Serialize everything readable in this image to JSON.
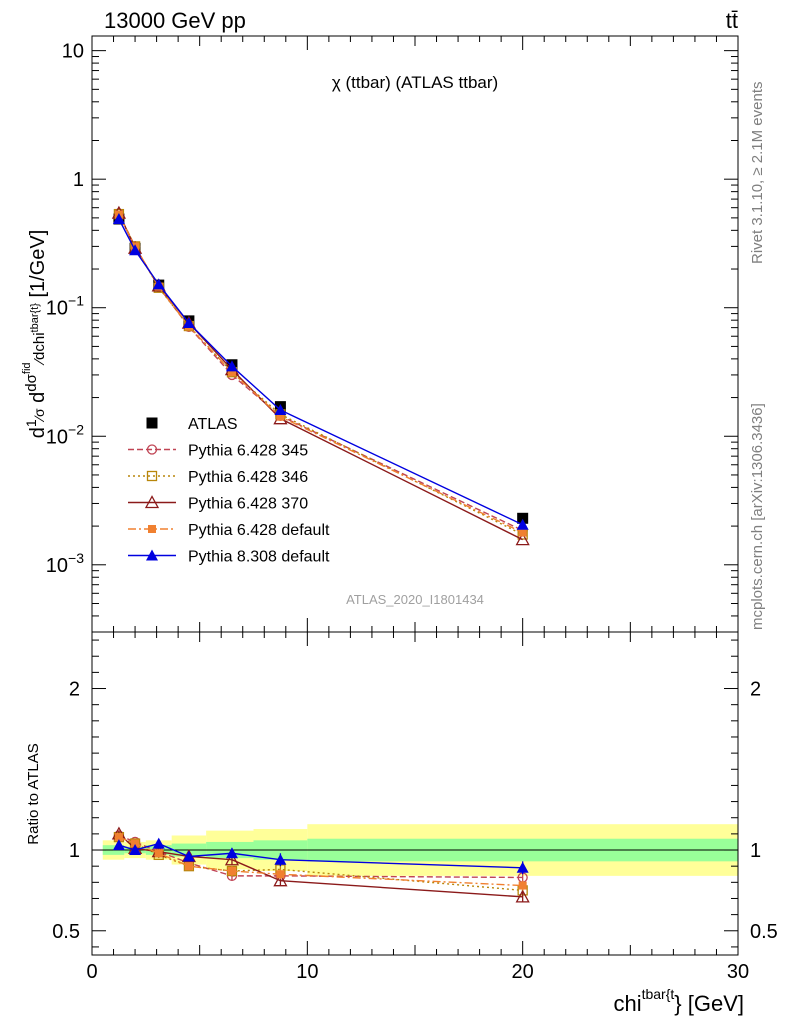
{
  "header": {
    "left": "13000 GeV pp",
    "right": "tt̄"
  },
  "side_labels": {
    "rivet": "Rivet 3.1.10, ≥ 2.1M events",
    "mcplots": "mcplots.cern.ch [arXiv:1306.3436]"
  },
  "chart_data": [
    {
      "type": "line",
      "panel": "main",
      "title": "χ (ttbar) (ATLAS ttbar)",
      "watermark": "ATLAS_2020_I1801434",
      "ylabel": "d¹⁄σ d dσ^fid / dchi^tbar{t} [1/GeV]",
      "yscale": "log",
      "ylim": [
        0.0003,
        13
      ],
      "xlim": [
        0,
        30
      ],
      "y_ticks": [
        {
          "v": 10,
          "label": "10"
        },
        {
          "v": 1,
          "label": "1"
        },
        {
          "v": 0.1,
          "label": "10",
          "exp": "−1"
        },
        {
          "v": 0.01,
          "label": "10",
          "exp": "−2"
        },
        {
          "v": 0.001,
          "label": "10",
          "exp": "−3"
        }
      ],
      "legend_position": "lower-left",
      "x": [
        1.25,
        2.0,
        3.1,
        4.5,
        6.5,
        8.75,
        20.0
      ],
      "series": [
        {
          "name": "ATLAS",
          "color": "#000000",
          "marker": "filled-square",
          "dash": "none",
          "values": [
            0.49,
            0.29,
            0.15,
            0.079,
            0.036,
            0.017,
            0.0023
          ]
        },
        {
          "name": "Pythia 6.428 345",
          "color": "#c04454",
          "marker": "open-circle",
          "dash": "6,3",
          "values": [
            0.54,
            0.3,
            0.145,
            0.071,
            0.03,
            0.0144,
            0.00185
          ]
        },
        {
          "name": "Pythia 6.428 346",
          "color": "#b8860b",
          "marker": "open-square",
          "dash": "2,3",
          "values": [
            0.535,
            0.3,
            0.143,
            0.072,
            0.0315,
            0.0148,
            0.00172
          ]
        },
        {
          "name": "Pythia 6.428 370",
          "color": "#8b1a1a",
          "marker": "open-triangle",
          "dash": "none",
          "values": [
            0.545,
            0.29,
            0.148,
            0.076,
            0.033,
            0.0137,
            0.00157
          ]
        },
        {
          "name": "Pythia 6.428 default",
          "color": "#f08030",
          "marker": "filled-small-square",
          "dash": "8,3,2,3",
          "values": [
            0.53,
            0.3,
            0.146,
            0.0715,
            0.0315,
            0.0142,
            0.00178
          ]
        },
        {
          "name": "Pythia 8.308 default",
          "color": "#0000e0",
          "marker": "filled-triangle",
          "dash": "none",
          "values": [
            0.49,
            0.28,
            0.152,
            0.076,
            0.035,
            0.016,
            0.00205
          ]
        }
      ]
    },
    {
      "type": "line",
      "panel": "ratio",
      "ylabel": "Ratio to ATLAS",
      "xlabel": "chi^tbar{t} [GeV]",
      "xlim": [
        0,
        30
      ],
      "ylim": [
        0.35,
        2.35
      ],
      "x_ticks": [
        0,
        10,
        20,
        30
      ],
      "y_ticks": [
        0.5,
        1,
        2
      ],
      "x": [
        1.25,
        2.0,
        3.1,
        4.5,
        6.5,
        8.75,
        20.0
      ],
      "bands": {
        "edges": [
          0.5,
          1.5,
          2.5,
          3.7,
          5.3,
          7.5,
          10.0,
          30.0
        ],
        "stat": [
          0.03,
          0.02,
          0.03,
          0.04,
          0.05,
          0.06,
          0.07
        ],
        "total": [
          0.06,
          0.05,
          0.06,
          0.09,
          0.12,
          0.13,
          0.16
        ],
        "stat_color": "#99ff99",
        "total_color": "#ffff99"
      },
      "series": [
        {
          "name": "Pythia 6.428 345",
          "color": "#c04454",
          "marker": "open-circle",
          "dash": "6,3",
          "values": [
            1.09,
            1.05,
            0.99,
            0.92,
            0.84,
            0.84,
            0.83
          ],
          "err": [
            0.02,
            0.02,
            0.02,
            0.02,
            0.03,
            0.03,
            0.03
          ]
        },
        {
          "name": "Pythia 6.428 346",
          "color": "#b8860b",
          "marker": "open-square",
          "dash": "2,3",
          "values": [
            1.08,
            1.04,
            0.97,
            0.9,
            0.87,
            0.88,
            0.75
          ],
          "err": [
            0.02,
            0.02,
            0.02,
            0.02,
            0.03,
            0.03,
            0.03
          ]
        },
        {
          "name": "Pythia 6.428 370",
          "color": "#8b1a1a",
          "marker": "open-triangle",
          "dash": "none",
          "values": [
            1.1,
            1.01,
            0.99,
            0.96,
            0.94,
            0.81,
            0.71
          ],
          "err": [
            0.02,
            0.02,
            0.02,
            0.03,
            0.03,
            0.03,
            0.03
          ]
        },
        {
          "name": "Pythia 6.428 default",
          "color": "#f08030",
          "marker": "filled-small-square",
          "dash": "8,3,2,3",
          "values": [
            1.08,
            1.04,
            0.98,
            0.9,
            0.87,
            0.85,
            0.78
          ],
          "err": [
            0.02,
            0.02,
            0.02,
            0.02,
            0.03,
            0.03,
            0.03
          ]
        },
        {
          "name": "Pythia 8.308 default",
          "color": "#0000e0",
          "marker": "filled-triangle",
          "dash": "none",
          "values": [
            1.03,
            1.0,
            1.04,
            0.96,
            0.98,
            0.94,
            0.89
          ],
          "err": [
            0.02,
            0.02,
            0.02,
            0.03,
            0.03,
            0.04,
            0.04
          ]
        }
      ]
    }
  ]
}
